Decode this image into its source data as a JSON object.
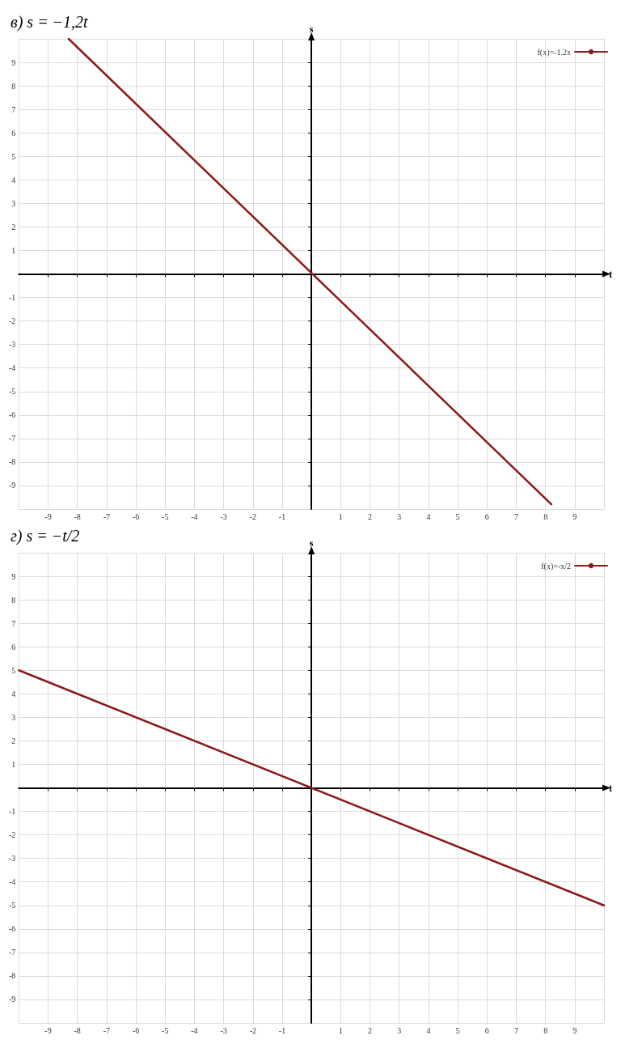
{
  "chart_data": [
    {
      "type": "line",
      "title": "в) s = −1,2t",
      "xlabel": "t",
      "ylabel": "s",
      "xlim": [
        -10,
        10
      ],
      "ylim": [
        -10,
        10
      ],
      "xticks": [
        -9,
        -8,
        -7,
        -6,
        -5,
        -4,
        -3,
        -2,
        -1,
        1,
        2,
        3,
        4,
        5,
        6,
        7,
        8,
        9
      ],
      "yticks": [
        -9,
        -8,
        -7,
        -6,
        -5,
        -4,
        -3,
        -2,
        -1,
        1,
        2,
        3,
        4,
        5,
        6,
        7,
        8,
        9
      ],
      "grid": true,
      "legend": "top right",
      "marker": "none",
      "line_style": "solid",
      "series": [
        {
          "name": "f(x)=-1.2x",
          "color": "#8b1a1a",
          "x": [
            -8.3,
            8.2
          ],
          "values": [
            10,
            -9.8
          ]
        }
      ]
    },
    {
      "type": "line",
      "title": "г) s = −t/2",
      "xlabel": "t",
      "ylabel": "s",
      "xlim": [
        -10,
        10
      ],
      "ylim": [
        -10,
        10
      ],
      "xticks": [
        -9,
        -8,
        -7,
        -6,
        -5,
        -4,
        -3,
        -2,
        -1,
        1,
        2,
        3,
        4,
        5,
        6,
        7,
        8,
        9
      ],
      "yticks": [
        -9,
        -8,
        -7,
        -6,
        -5,
        -4,
        -3,
        -2,
        -1,
        1,
        2,
        3,
        4,
        5,
        6,
        7,
        8,
        9
      ],
      "grid": true,
      "legend": "top right",
      "marker": "none",
      "line_style": "solid",
      "series": [
        {
          "name": "f(x)=-x/2",
          "color": "#8b1a1a",
          "x": [
            -10,
            10
          ],
          "values": [
            5,
            -5
          ]
        }
      ]
    }
  ]
}
